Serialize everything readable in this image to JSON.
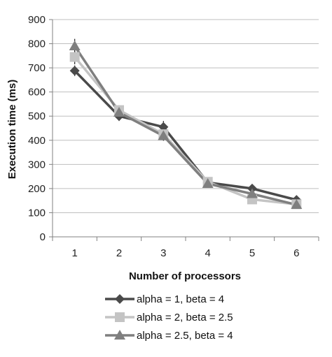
{
  "chart_data": {
    "type": "line",
    "x": [
      1,
      2,
      3,
      4,
      5,
      6
    ],
    "xlabel": "Number of processors",
    "ylabel": "Execution time (ms)",
    "ylim": [
      0,
      900
    ],
    "y_ticks": [
      0,
      100,
      200,
      300,
      400,
      500,
      600,
      700,
      800,
      900
    ],
    "grid": "horizontal",
    "legend_position": "bottom",
    "series": [
      {
        "name": "alpha = 1, beta = 4",
        "values": [
          688,
          500,
          455,
          225,
          200,
          153
        ],
        "error": [
          22,
          20,
          25,
          10,
          15,
          10
        ],
        "color": "#4a4a4a",
        "marker": "diamond"
      },
      {
        "name": "alpha = 2, beta = 2.5",
        "values": [
          745,
          525,
          425,
          228,
          155,
          135
        ],
        "error": [
          30,
          20,
          20,
          10,
          10,
          10
        ],
        "color": "#c4c4c4",
        "marker": "square"
      },
      {
        "name": "alpha = 2.5, beta = 4",
        "values": [
          790,
          515,
          418,
          220,
          178,
          133
        ],
        "error": [
          30,
          20,
          20,
          10,
          15,
          10
        ],
        "color": "#7f7f7f",
        "marker": "triangle"
      }
    ]
  }
}
